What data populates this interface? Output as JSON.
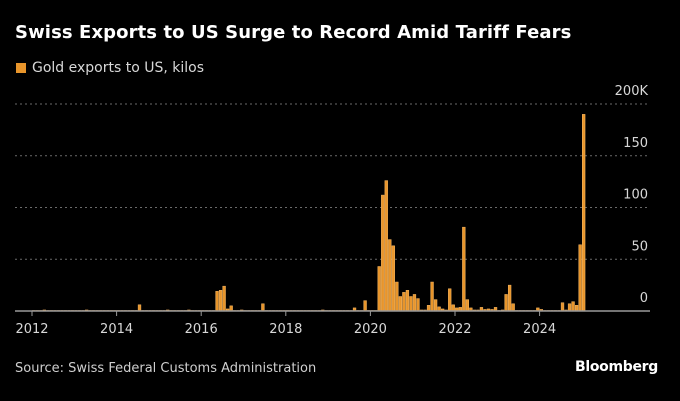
{
  "chart_data": {
    "type": "bar",
    "title": "Swiss Exports to US Surge to Record Amid Tariff Fears",
    "legend": [
      {
        "name": "Gold exports to US, kilos",
        "color": "#e8952b"
      }
    ],
    "series": [
      {
        "name": "Gold exports to US, kilos",
        "color": "#e8952b",
        "stroke": "#f6b866",
        "start": "2012-01",
        "frequency": "monthly",
        "values": [
          0.5,
          0.5,
          0.5,
          1,
          0.5,
          0.5,
          0.5,
          0.5,
          0.5,
          0.5,
          0.5,
          0.5,
          0.5,
          0.5,
          0.5,
          1,
          0.5,
          0.5,
          0.5,
          0.5,
          0.5,
          0.5,
          0.5,
          0.5,
          0.5,
          0.5,
          0.5,
          0.5,
          0.5,
          0.5,
          6,
          0.5,
          0.5,
          0.5,
          0.5,
          0.5,
          0.5,
          0.5,
          1,
          0.5,
          0.5,
          0.5,
          0.5,
          0.5,
          1,
          0.5,
          0.5,
          0.5,
          0.5,
          0.5,
          0.5,
          0.5,
          19,
          20,
          24,
          2,
          5,
          0.5,
          0.5,
          1,
          0.5,
          0.5,
          0.5,
          0.5,
          0.5,
          7,
          0.5,
          0.5,
          0.5,
          0.5,
          0.5,
          0.5,
          0.5,
          0.5,
          0.5,
          0.5,
          0.5,
          0.5,
          0.5,
          0.5,
          0.5,
          0.5,
          1,
          0.5,
          0.5,
          0.5,
          0.5,
          0.5,
          0.5,
          0.5,
          0.5,
          3,
          0.5,
          0.5,
          10,
          0.5,
          0.5,
          0.5,
          43,
          112,
          126,
          69,
          63,
          28,
          14,
          18,
          20,
          14,
          16,
          12,
          1,
          1,
          5.5,
          28,
          11,
          4,
          2,
          1,
          21.5,
          6,
          3,
          3.5,
          81,
          11,
          3,
          1,
          1,
          3.5,
          1.5,
          2,
          1.5,
          3.5,
          0.5,
          1,
          16,
          25,
          7,
          0.5,
          0.5,
          0.5,
          0.5,
          0.5,
          0.5,
          3,
          1.5,
          0.5,
          0.5,
          0.5,
          0.5,
          0.5,
          8,
          1,
          7,
          9,
          5.5,
          64,
          190
        ]
      }
    ],
    "ylim": [
      0,
      200
    ],
    "yunit": "thousand kilos",
    "yticks": [
      0,
      50,
      100,
      150,
      200
    ],
    "ytick_labels": [
      "0",
      "50",
      "100",
      "150",
      "200K"
    ],
    "xlim": [
      2011.6,
      2026.5
    ],
    "xticks": [
      2012,
      2014,
      2016,
      2018,
      2020,
      2022,
      2024
    ],
    "xtick_labels": [
      "2012",
      "2014",
      "2016",
      "2018",
      "2020",
      "2022",
      "2024"
    ],
    "grid": "horizontal dotted",
    "yaxis_side": "right",
    "legend_placement": "top-left"
  },
  "colors": {
    "background": "#000000",
    "bar": "#e8952b",
    "grid": "#6a6a6a",
    "axis": "#9a9a9a"
  },
  "footer": {
    "source": "Source: Swiss Federal Customs Administration",
    "logo": "Bloomberg"
  }
}
